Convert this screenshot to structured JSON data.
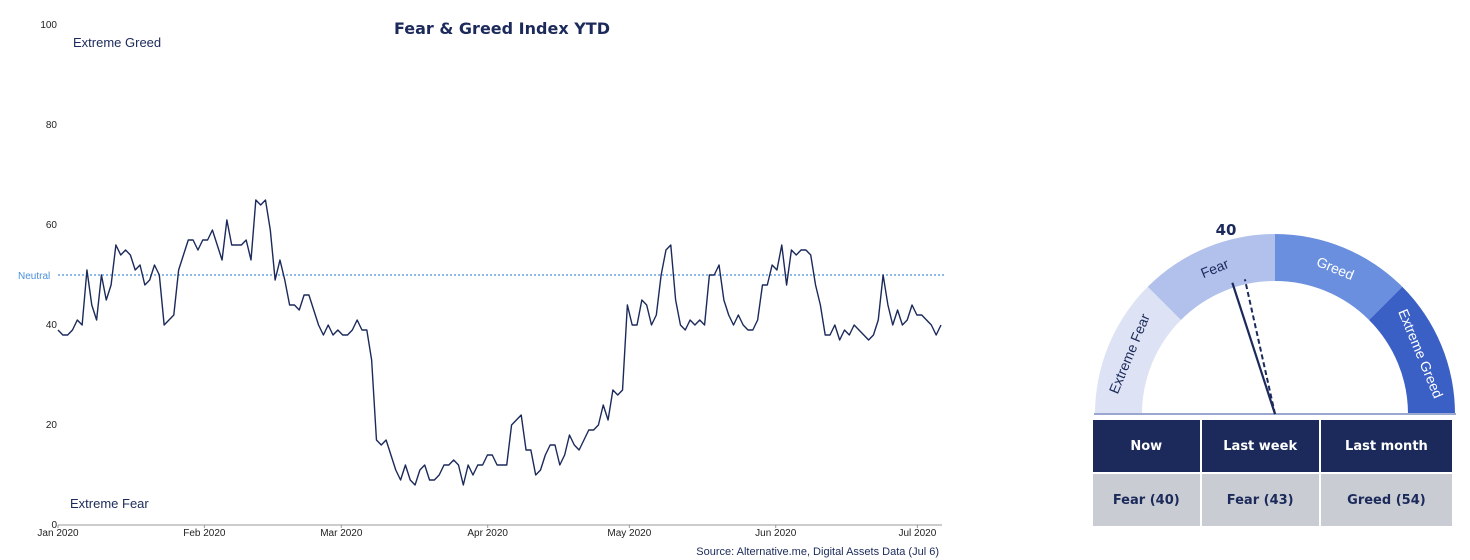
{
  "chart_data": {
    "type": "line",
    "title": "Fear & Greed Index YTD",
    "ylim": [
      0,
      100
    ],
    "yticks": [
      "0",
      "20",
      "40",
      "60",
      "80",
      "100"
    ],
    "xticks": [
      "Jan 2020",
      "Feb 2020",
      "Mar 2020",
      "Apr 2020",
      "May 2020",
      "Jun 2020",
      "Jul 2020"
    ],
    "zone_top_label": "Extreme Greed",
    "zone_bottom_label": "Extreme Fear",
    "neutral_label": "Neutral",
    "neutral_value": 50,
    "x_start": "2020-01-01",
    "x_end": "2020-07-06",
    "values": [
      39,
      38,
      38,
      39,
      41,
      40,
      51,
      44,
      41,
      50,
      45,
      48,
      56,
      54,
      55,
      54,
      51,
      52,
      48,
      49,
      52,
      50,
      40,
      41,
      42,
      51,
      54,
      57,
      57,
      55,
      57,
      57,
      59,
      56,
      53,
      61,
      56,
      56,
      56,
      57,
      53,
      65,
      64,
      65,
      59,
      49,
      53,
      49,
      44,
      44,
      43,
      46,
      46,
      43,
      40,
      38,
      40,
      38,
      39,
      38,
      38,
      39,
      41,
      39,
      39,
      33,
      17,
      16,
      17,
      14,
      11,
      9,
      12,
      9,
      8,
      11,
      12,
      9,
      9,
      10,
      12,
      12,
      13,
      12,
      8,
      12,
      10,
      12,
      12,
      14,
      14,
      12,
      12,
      12,
      20,
      21,
      22,
      15,
      15,
      10,
      11,
      14,
      16,
      16,
      12,
      14,
      18,
      16,
      15,
      17,
      19,
      19,
      20,
      24,
      21,
      27,
      26,
      27,
      44,
      40,
      40,
      45,
      44,
      40,
      42,
      50,
      55,
      56,
      45,
      40,
      39,
      41,
      40,
      41,
      40,
      50,
      50,
      52,
      45,
      42,
      40,
      42,
      40,
      39,
      39,
      41,
      48,
      48,
      52,
      51,
      56,
      48,
      55,
      54,
      55,
      55,
      54,
      48,
      44,
      38,
      38,
      40,
      37,
      39,
      38,
      40,
      39,
      38,
      37,
      38,
      41,
      50,
      44,
      40,
      43,
      40,
      41,
      44,
      42,
      42,
      41,
      40,
      38,
      40
    ]
  },
  "gauge": {
    "value": "40",
    "zones": [
      "Extreme Fear",
      "Fear",
      "Greed",
      "Extreme Greed"
    ],
    "zone_colors": [
      "#dde3f4",
      "#b2c1ec",
      "#6a8fdf",
      "#3a5fc5"
    ],
    "now_value": 40,
    "last_week_value": 43
  },
  "stats": {
    "headers": [
      "Now",
      "Last week",
      "Last month"
    ],
    "values": [
      "Fear (40)",
      "Fear (43)",
      "Greed (54)"
    ]
  },
  "source": "Source: Alternative.me, Digital Assets Data (Jul 6)",
  "colors": {
    "line": "#1b2a5a",
    "neutral_line": "#4a90d9",
    "header_bg": "#1b2a5a",
    "value_bg": "#c9ccd3"
  }
}
